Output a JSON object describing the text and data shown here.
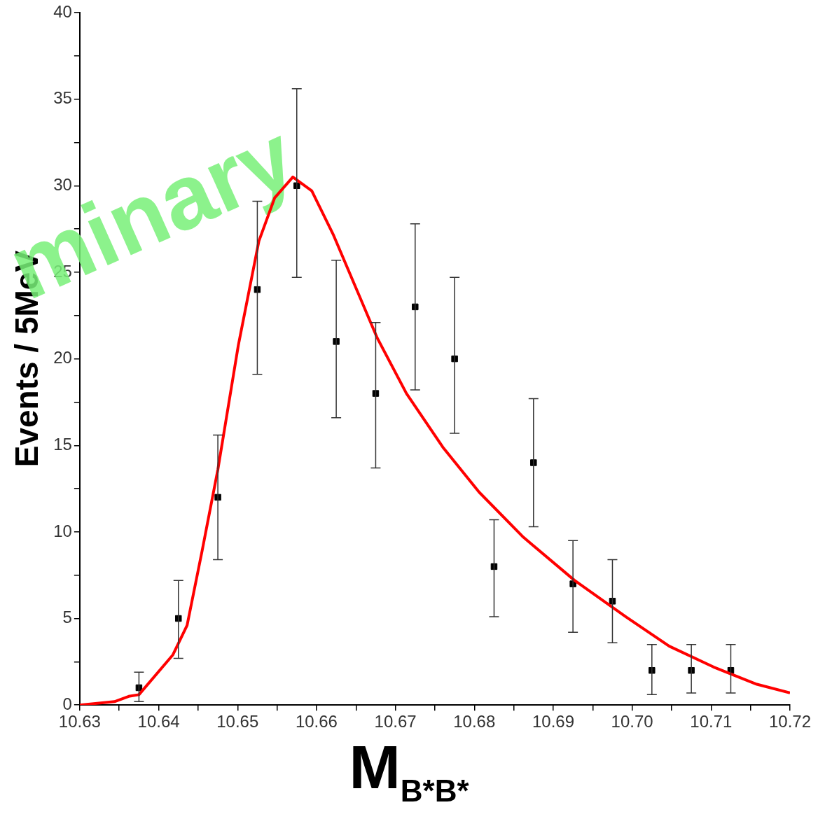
{
  "chart_data": {
    "type": "scatter",
    "xlabel": "M$_{B*B*}$",
    "ylabel": "Events / 5MeV",
    "annotations": [
      "minary"
    ],
    "xlim": [
      10.63,
      10.72
    ],
    "xticks": [
      10.63,
      {
        "value": 10.635,
        "label": null
      },
      10.64,
      {
        "value": 10.645,
        "label": null
      },
      10.65,
      {
        "value": 10.655,
        "label": null
      },
      10.66,
      {
        "value": 10.665,
        "label": null
      },
      10.67,
      {
        "value": 10.675,
        "label": null
      },
      10.68,
      {
        "value": 10.685,
        "label": null
      },
      10.69,
      {
        "value": 10.695,
        "label": null
      },
      {
        "value": 10.7,
        "label": "10.70"
      },
      {
        "value": 10.705,
        "label": null
      },
      10.71,
      {
        "value": 10.715,
        "label": null
      },
      10.72
    ],
    "ylim": [
      0,
      40
    ],
    "yticks": [
      0,
      {
        "value": 2.5,
        "label": null
      },
      5,
      {
        "value": 7.5,
        "label": null
      },
      10,
      {
        "value": 12.5,
        "label": null
      },
      15,
      {
        "value": 17.5,
        "label": null
      },
      20,
      {
        "value": 22.5,
        "label": null
      },
      25,
      {
        "value": 27.5,
        "label": null
      },
      30,
      {
        "value": 32.5,
        "label": null
      },
      35,
      {
        "value": 37.5,
        "label": null
      },
      40
    ],
    "grid": false,
    "series": [
      {
        "type": "line",
        "color": "#ff0000",
        "marker": "none",
        "x": [
          10.63,
          10.6344,
          10.6362,
          10.6375,
          10.6418,
          10.6436,
          10.6455,
          10.6475,
          10.6501,
          10.6527,
          10.6547,
          10.657,
          10.6594,
          10.6621,
          10.6649,
          10.6677,
          10.6714,
          10.676,
          10.6806,
          10.6862,
          10.6927,
          10.6992,
          10.7047,
          10.7103,
          10.7158,
          10.72
        ],
        "values": [
          0,
          0.2,
          0.5,
          0.6,
          2.9,
          4.6,
          8.9,
          13.6,
          20.8,
          26.8,
          29.3,
          30.5,
          29.7,
          27.2,
          24.2,
          21.2,
          18.0,
          14.9,
          12.3,
          9.7,
          7.2,
          5.1,
          3.4,
          2.2,
          1.2,
          0.7
        ]
      },
      {
        "color": "#000000",
        "marker": "square",
        "x": [
          10.6375,
          10.6425,
          10.6475,
          10.6525,
          10.6575,
          10.6625,
          10.6675,
          10.6725,
          10.6775,
          10.6825,
          10.6875,
          10.6925,
          10.6975,
          10.7025,
          10.7075,
          10.7125
        ],
        "values": [
          1,
          5,
          12,
          24,
          30,
          21,
          18,
          23,
          20,
          8,
          14,
          7,
          6,
          2,
          2,
          2
        ],
        "errors": [
          [
            0.2,
            1.9
          ],
          [
            2.7,
            7.2
          ],
          [
            8.4,
            15.6
          ],
          [
            19.1,
            29.1
          ],
          [
            24.7,
            35.6
          ],
          [
            16.6,
            25.7
          ],
          [
            13.7,
            22.1
          ],
          [
            18.2,
            27.8
          ],
          [
            15.7,
            24.7
          ],
          [
            5.1,
            10.7
          ],
          [
            10.3,
            17.7
          ],
          [
            4.2,
            9.5
          ],
          [
            3.6,
            8.4
          ],
          [
            0.6,
            3.5
          ],
          [
            0.7,
            3.5
          ],
          [
            0.7,
            3.5
          ]
        ]
      }
    ]
  }
}
